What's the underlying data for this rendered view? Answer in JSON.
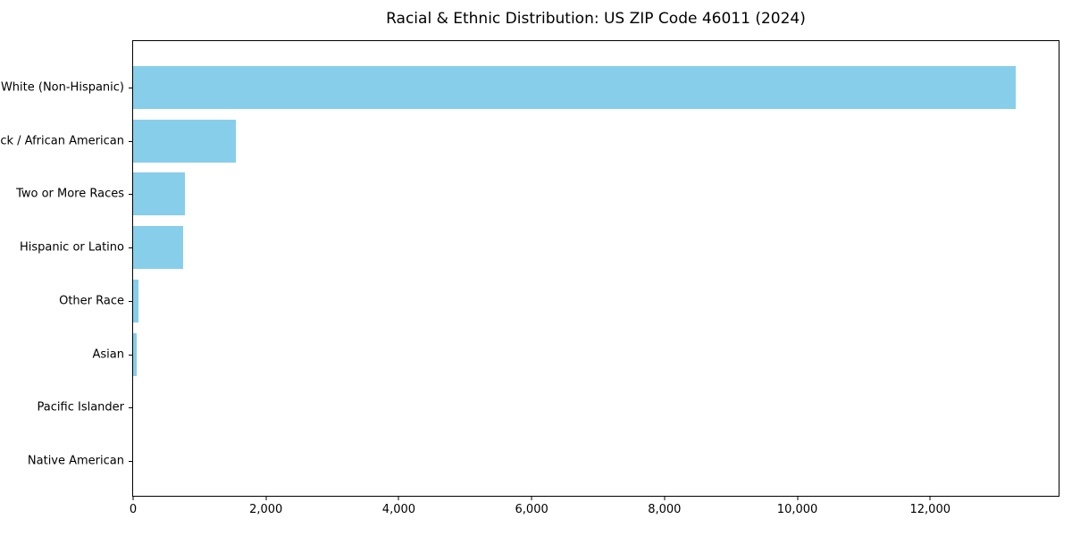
{
  "chart_data": {
    "type": "bar",
    "orientation": "horizontal",
    "title": "Racial & Ethnic Distribution: US ZIP Code 46011 (2024)",
    "categories": [
      "White (Non-Hispanic)",
      "Black / African American",
      "Two or More Races",
      "Hispanic or Latino",
      "Other Race",
      "Asian",
      "Pacific Islander",
      "Native American"
    ],
    "values": [
      13290,
      1540,
      780,
      755,
      85,
      60,
      0,
      0
    ],
    "xlabel": "",
    "ylabel": "",
    "xlim": [
      0,
      13960
    ],
    "xticks": [
      0,
      2000,
      4000,
      6000,
      8000,
      10000,
      12000
    ],
    "xtick_labels": [
      "0",
      "2,000",
      "4,000",
      "6,000",
      "8,000",
      "10,000",
      "12,000"
    ],
    "grid": false,
    "legend": null,
    "bar_color": "#87CEEB",
    "axis_color": "#000000",
    "background_color": "#FFFFFF"
  }
}
